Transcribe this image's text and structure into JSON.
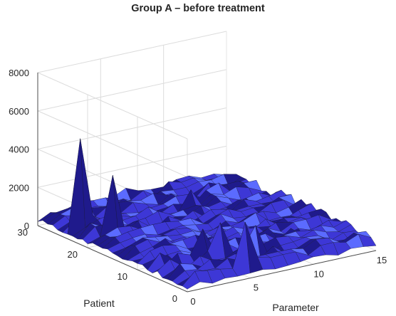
{
  "chart_data": {
    "type": "surface",
    "title": "Group A – before treatment",
    "xlabel": "Parameter",
    "ylabel": "Patient",
    "zlabel": "",
    "xlim": [
      0,
      15
    ],
    "ylim": [
      0,
      30
    ],
    "zlim": [
      0,
      8000
    ],
    "x_ticks": [
      "0",
      "5",
      "10",
      "15"
    ],
    "y_ticks": [
      "0",
      "10",
      "20",
      "30"
    ],
    "z_ticks": [
      "0",
      "2000",
      "4000",
      "6000",
      "8000"
    ],
    "grid": true,
    "colors": {
      "surface_dark": "#1f1a8c",
      "surface_mid": "#3d37d6",
      "surface_light": "#5b6bff",
      "edge": "#1a1a3a"
    },
    "baseline_level": 700,
    "peaks": [
      {
        "patient": 24,
        "parameter": 1,
        "value": 5100
      },
      {
        "patient": 20,
        "parameter": 2,
        "value": 3500
      },
      {
        "patient": 7,
        "parameter": 4,
        "value": 1900
      },
      {
        "patient": 6,
        "parameter": 5,
        "value": 2200
      },
      {
        "patient": 1,
        "parameter": 5,
        "value": 2800
      },
      {
        "patient": 4,
        "parameter": 7,
        "value": 2000
      },
      {
        "patient": 22,
        "parameter": 9,
        "value": 1500
      },
      {
        "patient": 24,
        "parameter": 12,
        "value": 1200
      }
    ]
  }
}
